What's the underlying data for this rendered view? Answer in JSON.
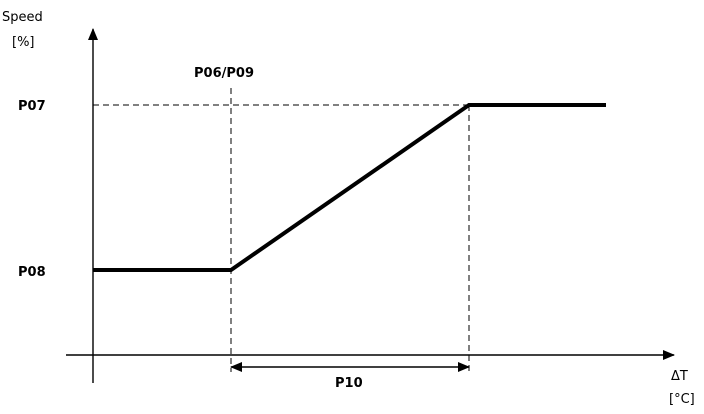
{
  "chart_data": {
    "type": "line",
    "title": "",
    "ylabel": "Speed",
    "yunit": "[%]",
    "xlabel": "ΔT",
    "xunit": "[°C]",
    "x_ticks": [
      "P06/P09"
    ],
    "y_ticks": [
      "P07",
      "P08"
    ],
    "span_label": "P10",
    "series": [
      {
        "points": [
          {
            "x": "0",
            "y": "P08"
          },
          {
            "x": "P06/P09",
            "y": "P08"
          },
          {
            "x": "P06/P09 + P10",
            "y": "P07"
          },
          {
            "x": "max",
            "y": "P07"
          }
        ]
      }
    ],
    "grid": false,
    "legend": "none"
  }
}
